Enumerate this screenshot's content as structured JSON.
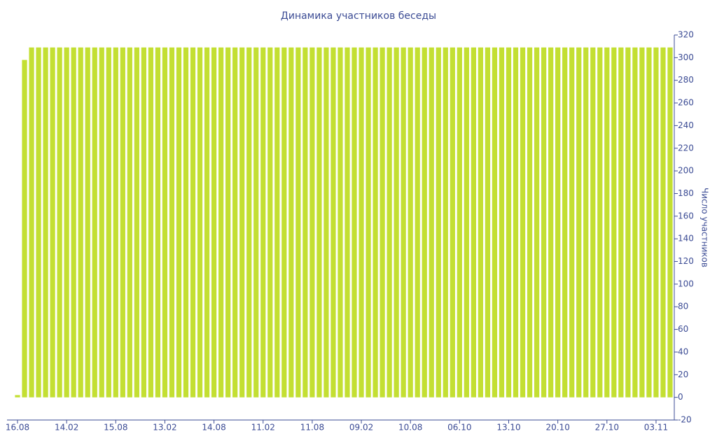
{
  "chart_data": {
    "type": "bar",
    "title": "Динамика участников беседы",
    "y_label": "Число участников",
    "categories": [
      "16.08",
      null,
      null,
      null,
      null,
      null,
      null,
      "14.02",
      null,
      null,
      null,
      null,
      null,
      null,
      "15.08",
      null,
      null,
      null,
      null,
      null,
      null,
      "13.02",
      null,
      null,
      null,
      null,
      null,
      null,
      "14.08",
      null,
      null,
      null,
      null,
      null,
      null,
      "11.02",
      null,
      null,
      null,
      null,
      null,
      null,
      "11.08",
      null,
      null,
      null,
      null,
      null,
      null,
      "09.02",
      null,
      null,
      null,
      null,
      null,
      null,
      "10.08",
      null,
      null,
      null,
      null,
      null,
      null,
      "06.10",
      null,
      null,
      null,
      null,
      null,
      null,
      "13.10",
      null,
      null,
      null,
      null,
      null,
      null,
      "20.10",
      null,
      null,
      null,
      null,
      null,
      null,
      "27.10",
      null,
      null,
      null,
      null,
      null,
      null,
      "03.11",
      null,
      null
    ],
    "values": [
      2,
      298,
      309,
      309,
      309,
      309,
      309,
      309,
      309,
      309,
      309,
      309,
      309,
      309,
      309,
      309,
      309,
      309,
      309,
      309,
      309,
      309,
      309,
      309,
      309,
      309,
      309,
      309,
      309,
      309,
      309,
      309,
      309,
      309,
      309,
      309,
      309,
      309,
      309,
      309,
      309,
      309,
      309,
      309,
      309,
      309,
      309,
      309,
      309,
      309,
      309,
      309,
      309,
      309,
      309,
      309,
      309,
      309,
      309,
      309,
      309,
      309,
      309,
      309,
      309,
      309,
      309,
      309,
      309,
      309,
      309,
      309,
      309,
      309,
      309,
      309,
      309,
      309,
      309,
      309,
      309,
      309,
      309,
      309,
      309,
      309,
      309,
      309,
      309,
      309,
      309,
      309,
      309,
      309
    ],
    "color": "#c3df32",
    "ylim": [
      -20,
      320
    ],
    "yticks": [
      -20,
      0,
      20,
      40,
      60,
      80,
      100,
      120,
      140,
      160,
      180,
      200,
      220,
      240,
      260,
      280,
      300,
      320
    ],
    "y_axis_side": "right"
  }
}
